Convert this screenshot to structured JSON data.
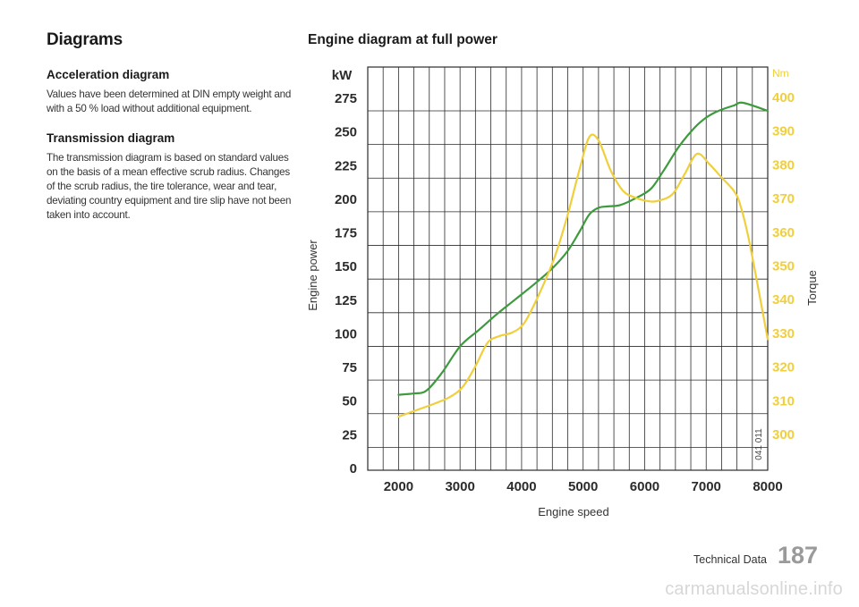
{
  "left": {
    "heading": "Diagrams",
    "sections": [
      {
        "title": "Acceleration diagram",
        "text": "Values have been determined at DIN empty weight and with a 50 % load without additional equipment."
      },
      {
        "title": "Transmission diagram",
        "text": "The transmission diagram is based on standard values on the basis of a mean effective scrub radius. Changes of the scrub radius, the tire tolerance, wear and tear, deviating country equipment and tire slip have not been taken into account."
      }
    ]
  },
  "chart_title": "Engine diagram at full power",
  "footer": {
    "label": "Technical Data",
    "page": "187"
  },
  "watermark": "carmanualsonline.info",
  "chart_data": {
    "type": "line",
    "xlabel": "Engine speed",
    "ylabel_left": "Engine power",
    "ylabel_right": "Torque",
    "unit_left": "kW",
    "unit_right": "Nm",
    "code": "041 011",
    "xlim": [
      1500,
      8000
    ],
    "ylim_left": [
      0,
      300
    ],
    "ylim_right": [
      295,
      415
    ],
    "x_ticks": [
      "2000",
      "3000",
      "4000",
      "5000",
      "6000",
      "7000",
      "8000"
    ],
    "x_tick_values": [
      2000,
      3000,
      4000,
      5000,
      6000,
      7000,
      8000
    ],
    "left_ticks": [
      "0",
      "25",
      "50",
      "75",
      "100",
      "125",
      "150",
      "175",
      "200",
      "225",
      "250",
      "275"
    ],
    "left_tick_values": [
      0,
      25,
      50,
      75,
      100,
      125,
      150,
      175,
      200,
      225,
      250,
      275
    ],
    "right_ticks": [
      "300",
      "310",
      "320",
      "330",
      "340",
      "350",
      "360",
      "370",
      "380",
      "390",
      "400"
    ],
    "right_tick_values": [
      300,
      310,
      320,
      330,
      340,
      350,
      360,
      370,
      380,
      390,
      400
    ],
    "grid": true,
    "colors": {
      "power": "#3d9a3d",
      "torque": "#f0cf3c",
      "ticks_left": "#2b2b2b",
      "ticks_right": "#f0cf3c",
      "grid": "#2b2b2b"
    },
    "series": [
      {
        "axis": "left",
        "color": "#3d9a3d",
        "x": [
          2000,
          2250,
          2450,
          2700,
          3000,
          3300,
          3600,
          3900,
          4200,
          4500,
          4750,
          4950,
          5100,
          5250,
          5400,
          5600,
          5850,
          6100,
          6300,
          6550,
          6800,
          7000,
          7200,
          7450,
          7600,
          8000
        ],
        "y": [
          64,
          65,
          67,
          80,
          100,
          112,
          124,
          135,
          146,
          158,
          171,
          186,
          198,
          203,
          204,
          205,
          210,
          217,
          230,
          248,
          262,
          270,
          275,
          279,
          281,
          275
        ]
      },
      {
        "axis": "right",
        "color": "#f0cf3c",
        "x": [
          2000,
          2300,
          2600,
          2850,
          3050,
          3250,
          3450,
          3650,
          3850,
          4050,
          4300,
          4550,
          4750,
          4950,
          5100,
          5250,
          5450,
          5650,
          5850,
          6050,
          6200,
          6450,
          6650,
          6850,
          7050,
          7250,
          7450,
          7550,
          7700,
          8000
        ],
        "y": [
          305,
          307,
          309,
          311,
          314,
          320,
          327,
          329,
          330,
          333,
          342,
          353,
          365,
          379,
          388,
          387,
          378,
          372,
          370,
          369,
          369,
          371,
          377,
          383,
          380,
          376,
          372,
          368,
          357,
          328
        ]
      }
    ]
  }
}
